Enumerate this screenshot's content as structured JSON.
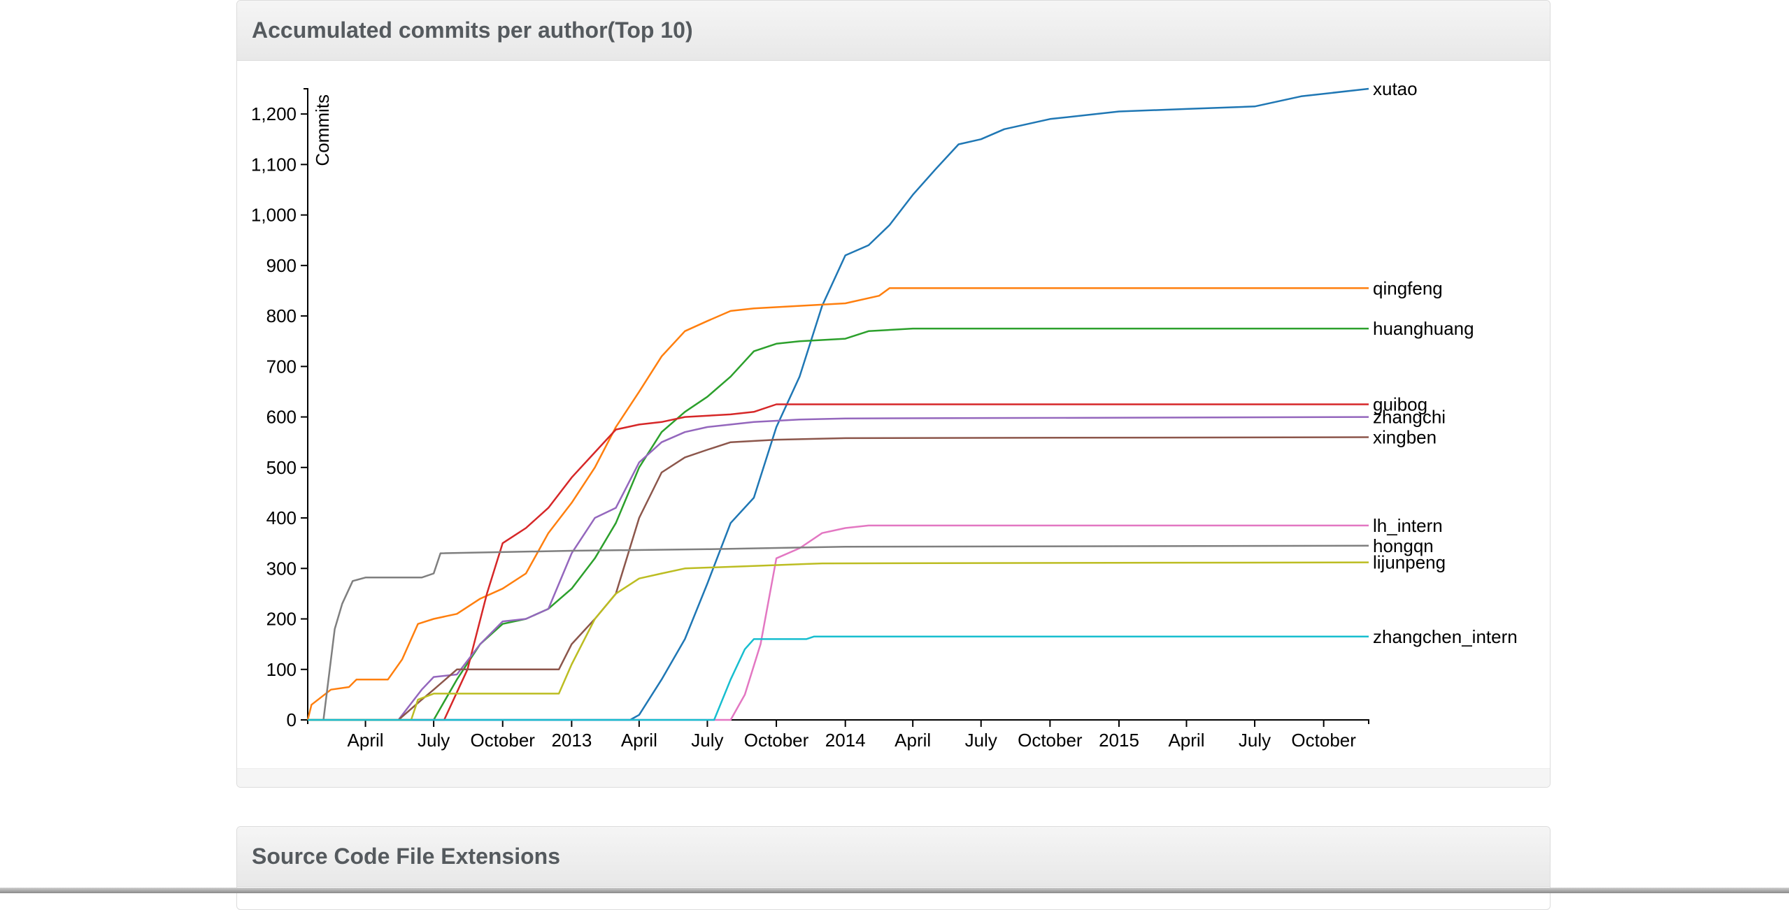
{
  "panels": {
    "commits_title": "Accumulated commits per author(Top 10)",
    "extensions_title": "Source Code File Extensions"
  },
  "chart_data": {
    "type": "line",
    "ylabel": "Commits",
    "xlabel": "",
    "ylim": [
      0,
      1250
    ],
    "y_ticks": [
      0,
      100,
      200,
      300,
      400,
      500,
      600,
      700,
      800,
      900,
      1000,
      1100,
      1200
    ],
    "xlim": [
      "2012-01-15",
      "2015-11-30"
    ],
    "x_ticks": [
      {
        "date": "2012-04-01",
        "label": "April"
      },
      {
        "date": "2012-07-01",
        "label": "July"
      },
      {
        "date": "2012-10-01",
        "label": "October"
      },
      {
        "date": "2013-01-01",
        "label": "2013"
      },
      {
        "date": "2013-04-01",
        "label": "April"
      },
      {
        "date": "2013-07-01",
        "label": "July"
      },
      {
        "date": "2013-10-01",
        "label": "October"
      },
      {
        "date": "2014-01-01",
        "label": "2014"
      },
      {
        "date": "2014-04-01",
        "label": "April"
      },
      {
        "date": "2014-07-01",
        "label": "July"
      },
      {
        "date": "2014-10-01",
        "label": "October"
      },
      {
        "date": "2015-01-01",
        "label": "2015"
      },
      {
        "date": "2015-04-01",
        "label": "April"
      },
      {
        "date": "2015-07-01",
        "label": "July"
      },
      {
        "date": "2015-10-01",
        "label": "October"
      }
    ],
    "grid": false,
    "legend": "labels at line ends (right)",
    "series": [
      {
        "name": "xutao",
        "color": "#1f77b4",
        "points": [
          [
            "2012-01-15",
            0
          ],
          [
            "2013-03-20",
            0
          ],
          [
            "2013-04-01",
            10
          ],
          [
            "2013-05-01",
            80
          ],
          [
            "2013-06-01",
            160
          ],
          [
            "2013-07-01",
            270
          ],
          [
            "2013-08-01",
            390
          ],
          [
            "2013-09-01",
            440
          ],
          [
            "2013-10-01",
            580
          ],
          [
            "2013-11-01",
            680
          ],
          [
            "2013-12-01",
            820
          ],
          [
            "2014-01-01",
            920
          ],
          [
            "2014-02-01",
            940
          ],
          [
            "2014-03-01",
            980
          ],
          [
            "2014-04-01",
            1040
          ],
          [
            "2014-05-01",
            1090
          ],
          [
            "2014-06-01",
            1140
          ],
          [
            "2014-07-01",
            1150
          ],
          [
            "2014-08-01",
            1170
          ],
          [
            "2014-10-01",
            1190
          ],
          [
            "2015-01-01",
            1205
          ],
          [
            "2015-04-01",
            1210
          ],
          [
            "2015-07-01",
            1215
          ],
          [
            "2015-09-01",
            1235
          ],
          [
            "2015-11-30",
            1250
          ]
        ]
      },
      {
        "name": "qingfeng",
        "color": "#ff7f0e",
        "points": [
          [
            "2012-01-15",
            0
          ],
          [
            "2012-01-20",
            30
          ],
          [
            "2012-02-15",
            60
          ],
          [
            "2012-03-10",
            65
          ],
          [
            "2012-03-20",
            80
          ],
          [
            "2012-05-01",
            80
          ],
          [
            "2012-05-20",
            120
          ],
          [
            "2012-06-10",
            190
          ],
          [
            "2012-07-01",
            200
          ],
          [
            "2012-08-01",
            210
          ],
          [
            "2012-09-01",
            240
          ],
          [
            "2012-10-01",
            260
          ],
          [
            "2012-11-01",
            290
          ],
          [
            "2012-12-01",
            370
          ],
          [
            "2013-01-01",
            430
          ],
          [
            "2013-02-01",
            500
          ],
          [
            "2013-03-01",
            580
          ],
          [
            "2013-04-01",
            650
          ],
          [
            "2013-05-01",
            720
          ],
          [
            "2013-06-01",
            770
          ],
          [
            "2013-07-01",
            790
          ],
          [
            "2013-08-01",
            810
          ],
          [
            "2013-09-01",
            815
          ],
          [
            "2013-11-01",
            820
          ],
          [
            "2014-01-01",
            825
          ],
          [
            "2014-02-15",
            840
          ],
          [
            "2014-03-01",
            855
          ],
          [
            "2015-11-30",
            855
          ]
        ]
      },
      {
        "name": "huanghuang",
        "color": "#2ca02c",
        "points": [
          [
            "2012-01-15",
            0
          ],
          [
            "2012-07-01",
            0
          ],
          [
            "2012-08-01",
            80
          ],
          [
            "2012-09-01",
            150
          ],
          [
            "2012-10-01",
            190
          ],
          [
            "2012-11-01",
            200
          ],
          [
            "2012-12-01",
            220
          ],
          [
            "2013-01-01",
            260
          ],
          [
            "2013-02-01",
            320
          ],
          [
            "2013-03-01",
            390
          ],
          [
            "2013-04-01",
            500
          ],
          [
            "2013-05-01",
            570
          ],
          [
            "2013-06-01",
            610
          ],
          [
            "2013-07-01",
            640
          ],
          [
            "2013-08-01",
            680
          ],
          [
            "2013-09-01",
            730
          ],
          [
            "2013-10-01",
            745
          ],
          [
            "2013-11-01",
            750
          ],
          [
            "2014-01-01",
            755
          ],
          [
            "2014-02-01",
            770
          ],
          [
            "2014-04-01",
            775
          ],
          [
            "2015-11-30",
            775
          ]
        ]
      },
      {
        "name": "guibog",
        "color": "#d62728",
        "points": [
          [
            "2012-01-15",
            0
          ],
          [
            "2012-07-15",
            0
          ],
          [
            "2012-08-15",
            100
          ],
          [
            "2012-09-10",
            250
          ],
          [
            "2012-10-01",
            350
          ],
          [
            "2012-11-01",
            380
          ],
          [
            "2012-12-01",
            420
          ],
          [
            "2013-01-01",
            480
          ],
          [
            "2013-02-01",
            530
          ],
          [
            "2013-03-01",
            575
          ],
          [
            "2013-04-01",
            585
          ],
          [
            "2013-05-01",
            590
          ],
          [
            "2013-06-01",
            600
          ],
          [
            "2013-08-01",
            605
          ],
          [
            "2013-09-01",
            610
          ],
          [
            "2013-10-01",
            625
          ],
          [
            "2015-11-30",
            625
          ]
        ]
      },
      {
        "name": "zhangchi",
        "color": "#9467bd",
        "points": [
          [
            "2012-01-15",
            0
          ],
          [
            "2012-05-15",
            0
          ],
          [
            "2012-06-15",
            60
          ],
          [
            "2012-07-01",
            85
          ],
          [
            "2012-08-01",
            90
          ],
          [
            "2012-09-01",
            150
          ],
          [
            "2012-10-01",
            195
          ],
          [
            "2012-11-01",
            200
          ],
          [
            "2012-12-01",
            220
          ],
          [
            "2013-01-01",
            330
          ],
          [
            "2013-02-01",
            400
          ],
          [
            "2013-03-01",
            420
          ],
          [
            "2013-04-01",
            510
          ],
          [
            "2013-05-01",
            550
          ],
          [
            "2013-06-01",
            570
          ],
          [
            "2013-07-01",
            580
          ],
          [
            "2013-08-01",
            585
          ],
          [
            "2013-09-01",
            590
          ],
          [
            "2013-11-01",
            595
          ],
          [
            "2014-01-01",
            597
          ],
          [
            "2015-11-30",
            600
          ]
        ]
      },
      {
        "name": "xingben",
        "color": "#8c564b",
        "points": [
          [
            "2012-01-15",
            0
          ],
          [
            "2012-05-15",
            0
          ],
          [
            "2012-06-15",
            40
          ],
          [
            "2012-07-01",
            60
          ],
          [
            "2012-08-01",
            100
          ],
          [
            "2012-12-15",
            100
          ],
          [
            "2013-01-01",
            150
          ],
          [
            "2013-02-01",
            200
          ],
          [
            "2013-03-01",
            250
          ],
          [
            "2013-04-01",
            400
          ],
          [
            "2013-05-01",
            490
          ],
          [
            "2013-06-01",
            520
          ],
          [
            "2013-07-01",
            535
          ],
          [
            "2013-08-01",
            550
          ],
          [
            "2013-10-01",
            555
          ],
          [
            "2014-01-01",
            558
          ],
          [
            "2015-11-30",
            560
          ]
        ]
      },
      {
        "name": "lh_intern",
        "color": "#e377c2",
        "points": [
          [
            "2012-01-15",
            0
          ],
          [
            "2013-08-01",
            0
          ],
          [
            "2013-08-20",
            50
          ],
          [
            "2013-09-10",
            150
          ],
          [
            "2013-10-01",
            320
          ],
          [
            "2013-11-01",
            340
          ],
          [
            "2013-12-01",
            370
          ],
          [
            "2014-01-01",
            380
          ],
          [
            "2014-02-01",
            385
          ],
          [
            "2015-11-30",
            385
          ]
        ]
      },
      {
        "name": "hongqn",
        "color": "#7f7f7f",
        "points": [
          [
            "2012-01-15",
            0
          ],
          [
            "2012-02-05",
            0
          ],
          [
            "2012-02-20",
            180
          ],
          [
            "2012-03-01",
            230
          ],
          [
            "2012-03-15",
            275
          ],
          [
            "2012-04-01",
            282
          ],
          [
            "2012-06-15",
            282
          ],
          [
            "2012-07-01",
            290
          ],
          [
            "2012-07-10",
            330
          ],
          [
            "2013-01-01",
            335
          ],
          [
            "2013-07-01",
            338
          ],
          [
            "2014-01-01",
            343
          ],
          [
            "2015-11-30",
            345
          ]
        ]
      },
      {
        "name": "lijunpeng",
        "color": "#bcbd22",
        "points": [
          [
            "2012-01-15",
            0
          ],
          [
            "2012-06-01",
            0
          ],
          [
            "2012-06-10",
            40
          ],
          [
            "2012-07-01",
            52
          ],
          [
            "2012-12-15",
            52
          ],
          [
            "2013-01-01",
            110
          ],
          [
            "2013-02-01",
            200
          ],
          [
            "2013-03-01",
            250
          ],
          [
            "2013-04-01",
            280
          ],
          [
            "2013-05-01",
            290
          ],
          [
            "2013-06-01",
            300
          ],
          [
            "2013-09-01",
            305
          ],
          [
            "2013-12-01",
            310
          ],
          [
            "2015-11-30",
            312
          ]
        ]
      },
      {
        "name": "zhangchen_intern",
        "color": "#17becf",
        "points": [
          [
            "2012-01-15",
            0
          ],
          [
            "2013-07-10",
            0
          ],
          [
            "2013-08-01",
            80
          ],
          [
            "2013-08-20",
            140
          ],
          [
            "2013-09-01",
            160
          ],
          [
            "2013-11-10",
            160
          ],
          [
            "2013-11-20",
            165
          ],
          [
            "2015-11-30",
            165
          ]
        ]
      }
    ]
  }
}
